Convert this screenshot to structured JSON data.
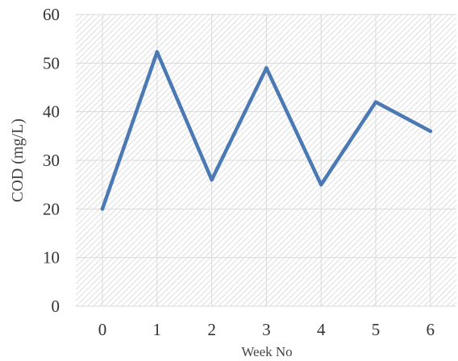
{
  "chart_data": {
    "type": "line",
    "x": [
      0,
      1,
      2,
      3,
      4,
      5,
      6
    ],
    "series": [
      {
        "values": [
          20,
          52.3,
          26,
          49,
          25,
          42,
          36
        ],
        "color": "#4a79b4"
      }
    ],
    "xlabel": "Week No",
    "ylabel": "COD (mg/L)",
    "ylim": [
      0,
      60
    ],
    "yticks": [
      0,
      10,
      20,
      30,
      40,
      50,
      60
    ],
    "xticks": [
      "0",
      "1",
      "2",
      "3",
      "4",
      "5",
      "6"
    ],
    "grid": true,
    "plot_background": "hatched light gray"
  }
}
